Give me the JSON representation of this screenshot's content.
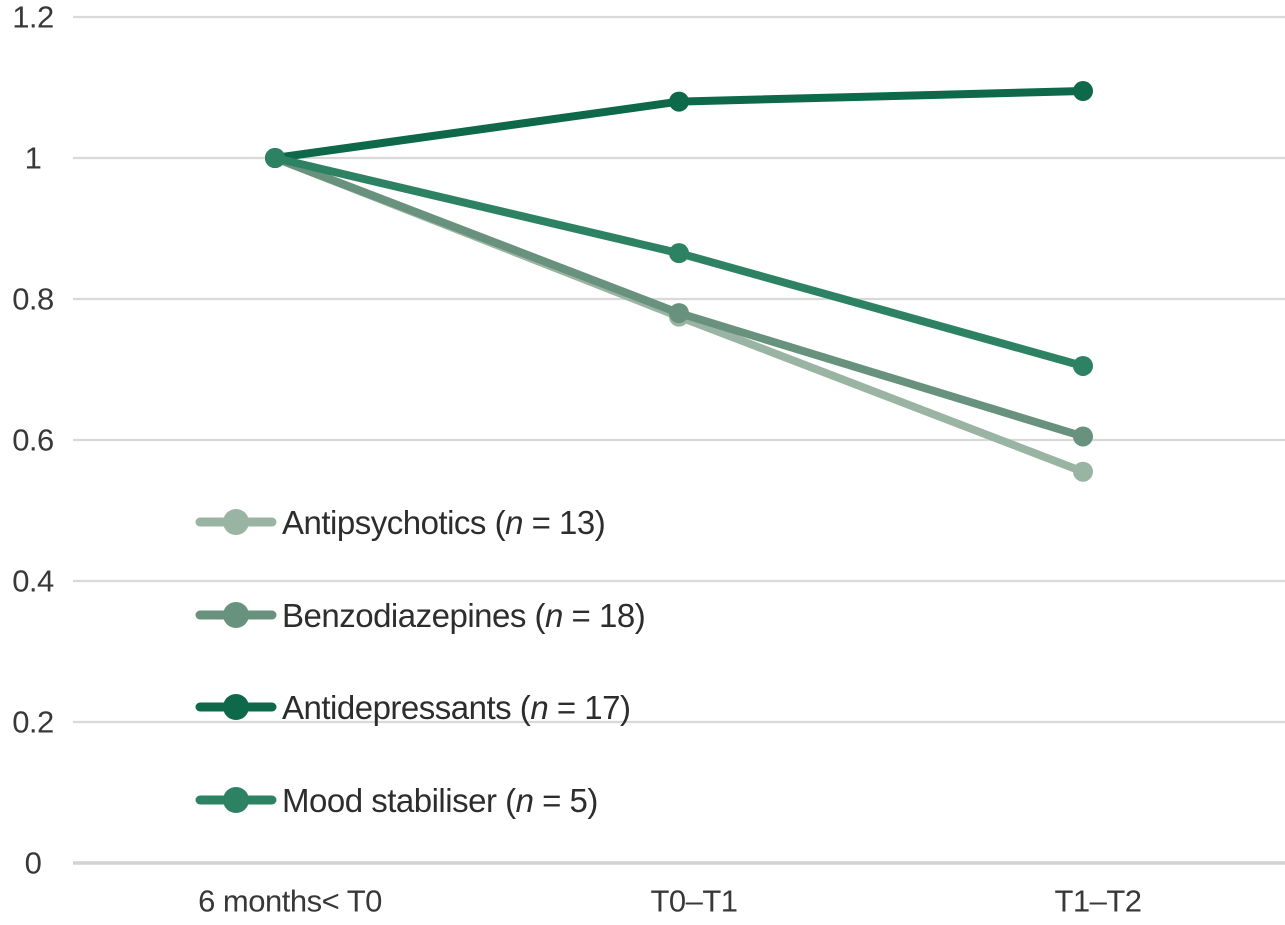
{
  "chart_data": {
    "type": "line",
    "title": "",
    "xlabel": "",
    "ylabel": "",
    "categories": [
      "6 months< T0",
      "T0–T1",
      "T1–T2"
    ],
    "series": [
      {
        "name": "Antipsychotics",
        "n": 13,
        "label": "Antipsychotics (n = 13)",
        "color": "#9ab4a4",
        "values": [
          1.0,
          0.775,
          0.555
        ]
      },
      {
        "name": "Benzodiazepines",
        "n": 18,
        "label": "Benzodiazepines (n = 18)",
        "color": "#68927e",
        "values": [
          1.0,
          0.78,
          0.605
        ]
      },
      {
        "name": "Antidepressants",
        "n": 17,
        "label": "Antidepressants (n = 17)",
        "color": "#0e684a",
        "values": [
          1.0,
          1.08,
          1.095
        ]
      },
      {
        "name": "Mood stabiliser",
        "n": 5,
        "label": "Mood stabiliser (n = 5)",
        "color": "#2e8264",
        "values": [
          1.0,
          0.865,
          0.705
        ]
      }
    ],
    "ylim": [
      0,
      1.2
    ],
    "y_ticks": [
      0,
      0.2,
      0.4,
      0.6,
      0.8,
      1,
      1.2
    ],
    "y_tick_labels": [
      "0",
      "0.2",
      "0.4",
      "0.6",
      "0.8",
      "1",
      "1.2"
    ],
    "grid": true,
    "legend_position": "inside-left-middle",
    "colors": {
      "grid": "#d9d9d9",
      "baseline": "#d2d2d2",
      "axis_text": "#383838",
      "legend_text": "#2d2d2d",
      "background": "#ffffff"
    }
  }
}
